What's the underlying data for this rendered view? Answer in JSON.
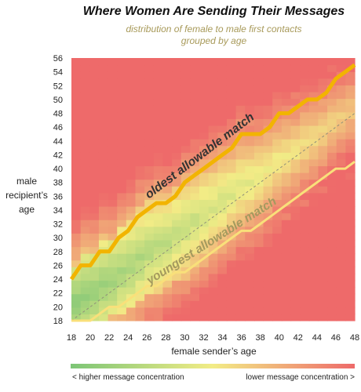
{
  "chart_data": {
    "type": "heatmap",
    "title": "Where Women Are Sending Their Messages",
    "subtitle_lines": [
      "distribution of female to male first contacts",
      "grouped by age"
    ],
    "xlabel": "female sender’s age",
    "ylabel_lines": [
      "male",
      "recipient’s",
      "age"
    ],
    "x_range": [
      18,
      48
    ],
    "y_range": [
      18,
      56
    ],
    "x_ticks": [
      18,
      20,
      22,
      24,
      26,
      28,
      30,
      32,
      34,
      36,
      38,
      40,
      42,
      44,
      46,
      48
    ],
    "y_ticks": [
      18,
      20,
      22,
      24,
      26,
      28,
      30,
      32,
      34,
      36,
      38,
      40,
      42,
      44,
      46,
      48,
      50,
      52,
      54,
      56
    ],
    "grid": false,
    "diagonal_reference_line": true,
    "oldest_allowable_match": {
      "label": "oldest allowable match",
      "x": [
        18,
        19,
        20,
        21,
        22,
        23,
        24,
        25,
        26,
        27,
        28,
        29,
        30,
        31,
        32,
        33,
        34,
        35,
        36,
        37,
        38,
        39,
        40,
        41,
        42,
        43,
        44,
        45,
        46,
        47,
        48
      ],
      "y": [
        24,
        26,
        26,
        28,
        28,
        30,
        31,
        33,
        34,
        35,
        35,
        36,
        38,
        39,
        40,
        41,
        42,
        43,
        45,
        45,
        45,
        46,
        48,
        48,
        49,
        50,
        50,
        51,
        53,
        54,
        55
      ]
    },
    "youngest_allowable_match": {
      "label": "youngest allowable match",
      "x": [
        18,
        19,
        20,
        21,
        22,
        23,
        24,
        25,
        26,
        27,
        28,
        29,
        30,
        31,
        32,
        33,
        34,
        35,
        36,
        37,
        38,
        39,
        40,
        41,
        42,
        43,
        44,
        45,
        46,
        47,
        48
      ],
      "y": [
        18,
        18,
        18,
        19,
        20,
        20,
        21,
        22,
        23,
        23,
        24,
        25,
        25,
        26,
        27,
        28,
        29,
        30,
        31,
        31,
        32,
        33,
        34,
        35,
        36,
        37,
        38,
        39,
        40,
        40,
        41
      ]
    },
    "colors": {
      "higher_concentration": "#7cc576",
      "middle": "#f2ec86",
      "lower_concentration": "#ee6a6a",
      "match_line": "#f2b400",
      "youngest_line": "#f9e07a",
      "annotation_oldest": "#333333",
      "annotation_youngest": "#a49a5e"
    },
    "legend": {
      "left_label": "< higher message concentration",
      "right_label": "lower message concentration >",
      "placement": "bottom"
    }
  }
}
